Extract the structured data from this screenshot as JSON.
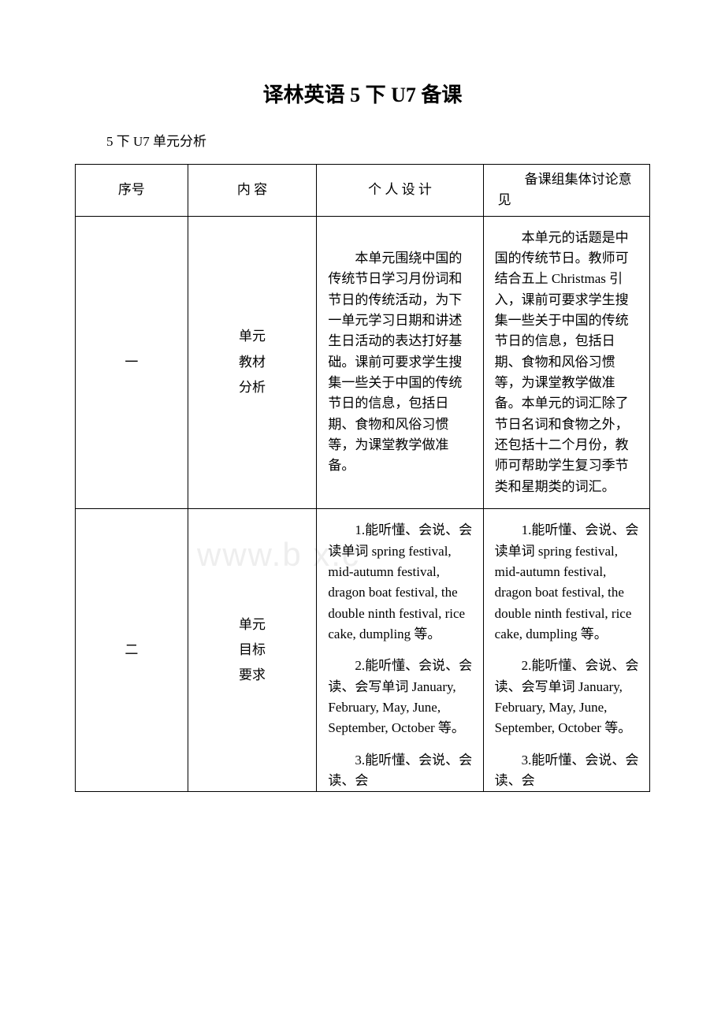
{
  "title": "译林英语 5 下 U7 备课",
  "subtitle": "5 下 U7 单元分析",
  "watermark": "www.b    x.c",
  "headers": {
    "col1": "序号",
    "col2": "内 容",
    "col3": "个 人 设 计",
    "col4": "备课组集体讨论意见"
  },
  "rows": [
    {
      "num": "一",
      "label_lines": [
        "单元",
        "教材",
        "分析"
      ],
      "personal": "本单元围绕中国的传统节日学习月份词和节日的传统活动，为下一单元学习日期和讲述生日活动的表达打好基础。课前可要求学生搜集一些关于中国的传统节日的信息，包括日期、食物和风俗习惯等，为课堂教学做准备。",
      "group": "本单元的话题是中国的传统节日。教师可结合五上 Christmas 引入，课前可要求学生搜集一些关于中国的传统节日的信息，包括日期、食物和风俗习惯等，为课堂教学做准备。本单元的词汇除了节日名词和食物之外，还包括十二个月份，教师可帮助学生复习季节类和星期类的词汇。"
    },
    {
      "num": "二",
      "label_lines": [
        "单元",
        "目标",
        "要求"
      ],
      "personal_paras": [
        "1.能听懂、会说、会读单词 spring festival, mid-autumn festival, dragon boat festival, the double ninth festival, rice cake, dumpling 等。",
        "2.能听懂、会说、会读、会写单词 January, February, May, June, September, October 等。",
        "3.能听懂、会说、会读、会"
      ],
      "group_paras": [
        "1.能听懂、会说、会读单词 spring festival, mid-autumn festival, dragon boat festival, the double ninth festival, rice cake, dumpling 等。",
        "2.能听懂、会说、会读、会写单词 January, February, May, June, September, October 等。",
        "3.能听懂、会说、会读、会"
      ]
    }
  ]
}
